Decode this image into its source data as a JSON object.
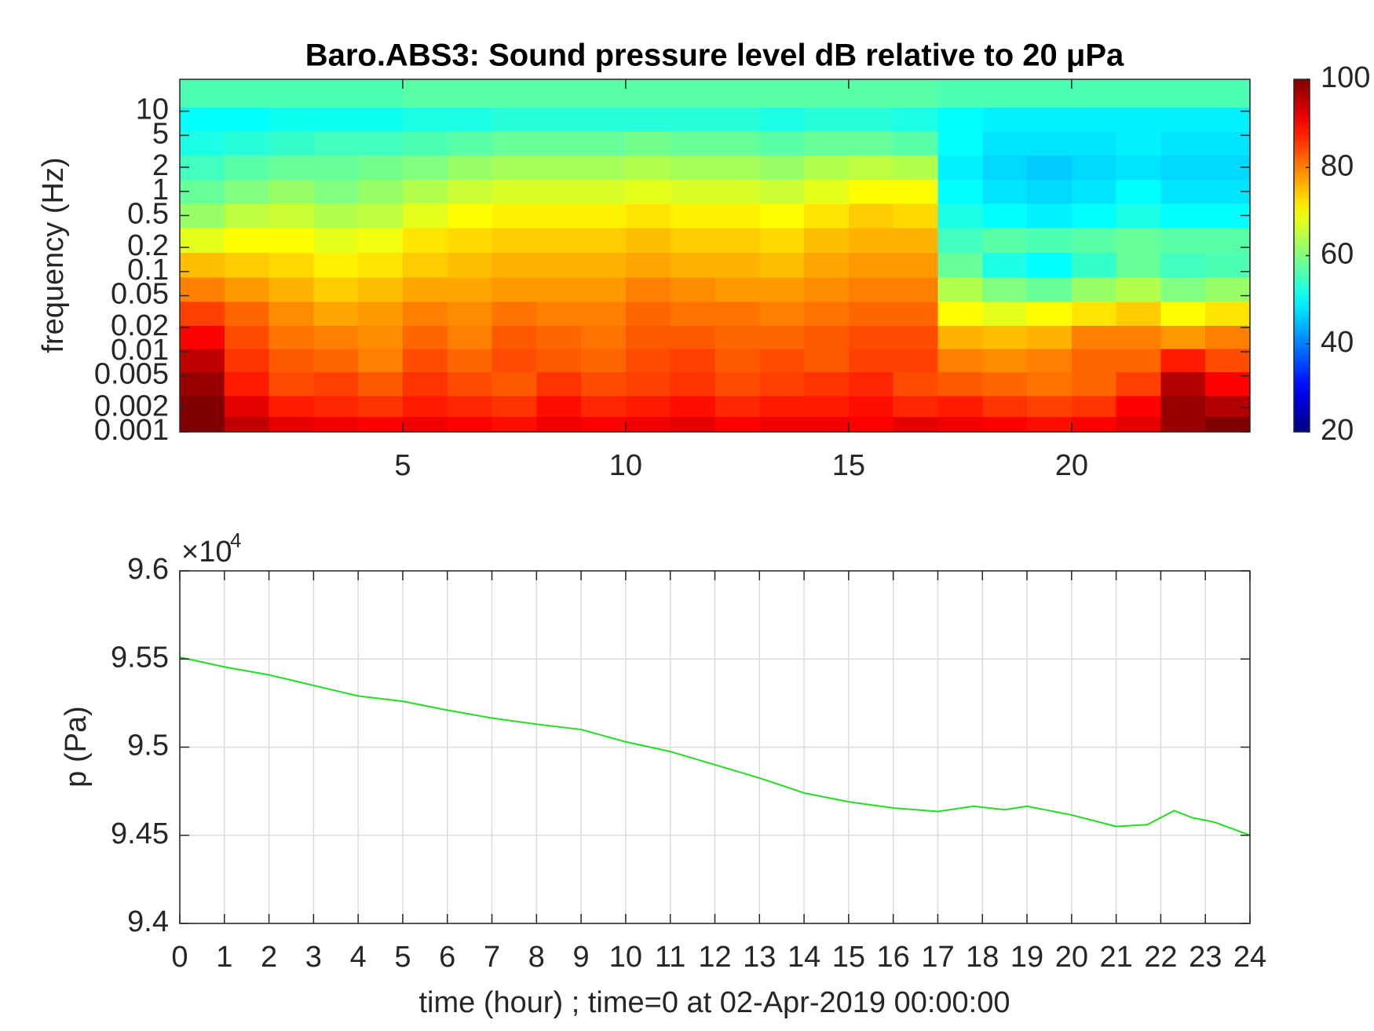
{
  "chart_data": [
    {
      "type": "heatmap",
      "title": "Baro.ABS3: Sound pressure level dB relative to 20 μPa",
      "ylabel": "frequency (Hz)",
      "x": [
        0.5,
        1.5,
        2.5,
        3.5,
        4.5,
        5.5,
        6.5,
        7.5,
        8.5,
        9.5,
        10.5,
        11.5,
        12.5,
        13.5,
        14.5,
        15.5,
        16.5,
        17.5,
        18.5,
        19.5,
        20.5,
        21.5,
        22.5,
        23.5
      ],
      "y": [
        0.0012,
        0.002,
        0.004,
        0.008,
        0.015,
        0.03,
        0.06,
        0.12,
        0.25,
        0.5,
        1,
        2,
        4,
        8,
        16
      ],
      "z": [
        [
          100,
          95,
          92,
          91,
          90,
          91,
          90,
          89,
          91,
          90,
          91,
          92,
          90,
          91,
          91,
          90,
          92,
          91,
          90,
          89,
          90,
          92,
          98,
          100
        ],
        [
          100,
          92,
          88,
          87,
          86,
          88,
          87,
          86,
          89,
          87,
          88,
          89,
          87,
          88,
          88,
          89,
          87,
          88,
          86,
          85,
          86,
          90,
          98,
          96
        ],
        [
          98,
          88,
          84,
          85,
          83,
          86,
          84,
          83,
          86,
          84,
          85,
          86,
          84,
          85,
          86,
          87,
          84,
          83,
          82,
          81,
          82,
          85,
          96,
          90
        ],
        [
          95,
          86,
          83,
          82,
          80,
          84,
          82,
          84,
          83,
          82,
          84,
          85,
          83,
          84,
          83,
          85,
          85,
          80,
          79,
          80,
          82,
          82,
          88,
          84
        ],
        [
          90,
          84,
          81,
          80,
          79,
          82,
          80,
          83,
          82,
          81,
          83,
          83,
          82,
          82,
          83,
          84,
          84,
          76,
          75,
          76,
          80,
          80,
          78,
          80
        ],
        [
          85,
          82,
          79,
          77,
          78,
          80,
          79,
          81,
          80,
          80,
          82,
          81,
          81,
          80,
          81,
          82,
          82,
          70,
          68,
          70,
          72,
          74,
          70,
          72
        ],
        [
          80,
          78,
          76,
          74,
          75,
          77,
          77,
          78,
          78,
          78,
          80,
          79,
          78,
          78,
          79,
          80,
          80,
          64,
          60,
          58,
          62,
          64,
          60,
          62
        ],
        [
          75,
          74,
          73,
          71,
          72,
          74,
          75,
          76,
          76,
          76,
          77,
          76,
          76,
          75,
          77,
          78,
          78,
          58,
          52,
          50,
          54,
          58,
          55,
          56
        ],
        [
          68,
          70,
          70,
          68,
          69,
          72,
          73,
          74,
          74,
          74,
          75,
          74,
          74,
          73,
          75,
          76,
          76,
          55,
          57,
          56,
          57,
          58,
          57,
          57
        ],
        [
          62,
          65,
          66,
          64,
          65,
          68,
          70,
          71,
          71,
          71,
          72,
          71,
          71,
          70,
          72,
          74,
          73,
          52,
          50,
          49,
          50,
          52,
          50,
          50
        ],
        [
          58,
          60,
          62,
          60,
          62,
          64,
          66,
          67,
          67,
          67,
          68,
          67,
          67,
          66,
          68,
          70,
          70,
          50,
          48,
          47,
          48,
          50,
          48,
          48
        ],
        [
          55,
          57,
          58,
          58,
          59,
          60,
          62,
          63,
          63,
          63,
          64,
          63,
          63,
          62,
          64,
          65,
          64,
          49,
          47,
          46,
          47,
          48,
          47,
          47
        ],
        [
          52,
          53,
          54,
          55,
          55,
          56,
          57,
          58,
          58,
          58,
          59,
          58,
          58,
          57,
          58,
          58,
          57,
          50,
          48,
          48,
          48,
          49,
          48,
          48
        ],
        [
          50,
          50,
          51,
          51,
          51,
          52,
          52,
          53,
          53,
          53,
          53,
          53,
          53,
          52,
          53,
          53,
          52,
          50,
          49,
          49,
          49,
          49,
          49,
          49
        ],
        [
          56,
          56,
          56,
          56,
          56,
          57,
          57,
          57,
          57,
          57,
          57,
          57,
          57,
          57,
          57,
          57,
          57,
          56,
          56,
          56,
          56,
          56,
          56,
          56
        ]
      ],
      "xlim": [
        0,
        24
      ],
      "xticks": [
        5,
        10,
        15,
        20
      ],
      "ylim": [
        0.001,
        25
      ],
      "yticks": [
        10,
        5,
        2,
        1,
        0.5,
        0.2,
        0.1,
        0.05,
        0.02,
        0.01,
        0.005,
        0.002,
        0.001
      ],
      "ylog": true,
      "colormap": "jet",
      "clim": [
        20,
        100
      ],
      "cticks": [
        20,
        40,
        60,
        80,
        100
      ]
    },
    {
      "type": "line",
      "xlabel": "time (hour) ; time=0 at 02-Apr-2019 00:00:00",
      "ylabel": "p (Pa)",
      "y_multiplier": "×10",
      "y_exponent": "4",
      "x": [
        0,
        1,
        2,
        3,
        4,
        5,
        6,
        7,
        8,
        9,
        10,
        11,
        12,
        13,
        14,
        15,
        16,
        17,
        17.8,
        18.5,
        19,
        20,
        21,
        21.7,
        22.3,
        22.7,
        23.2,
        24
      ],
      "series": [
        {
          "color": "#22dd22",
          "values": [
            9.551,
            9.5455,
            9.541,
            9.535,
            9.529,
            9.526,
            9.521,
            9.5165,
            9.513,
            9.51,
            9.503,
            9.4975,
            9.49,
            9.4825,
            9.474,
            9.469,
            9.4655,
            9.4635,
            9.4665,
            9.4645,
            9.4665,
            9.4615,
            9.455,
            9.456,
            9.464,
            9.46,
            9.4575,
            9.45
          ]
        }
      ],
      "xlim": [
        0,
        24
      ],
      "xticks": [
        0,
        1,
        2,
        3,
        4,
        5,
        6,
        7,
        8,
        9,
        10,
        11,
        12,
        13,
        14,
        15,
        16,
        17,
        18,
        19,
        20,
        21,
        22,
        23,
        24
      ],
      "ylim": [
        9.4,
        9.6
      ],
      "yticks": [
        9.4,
        9.45,
        9.5,
        9.55,
        9.6
      ],
      "grid": true
    }
  ]
}
